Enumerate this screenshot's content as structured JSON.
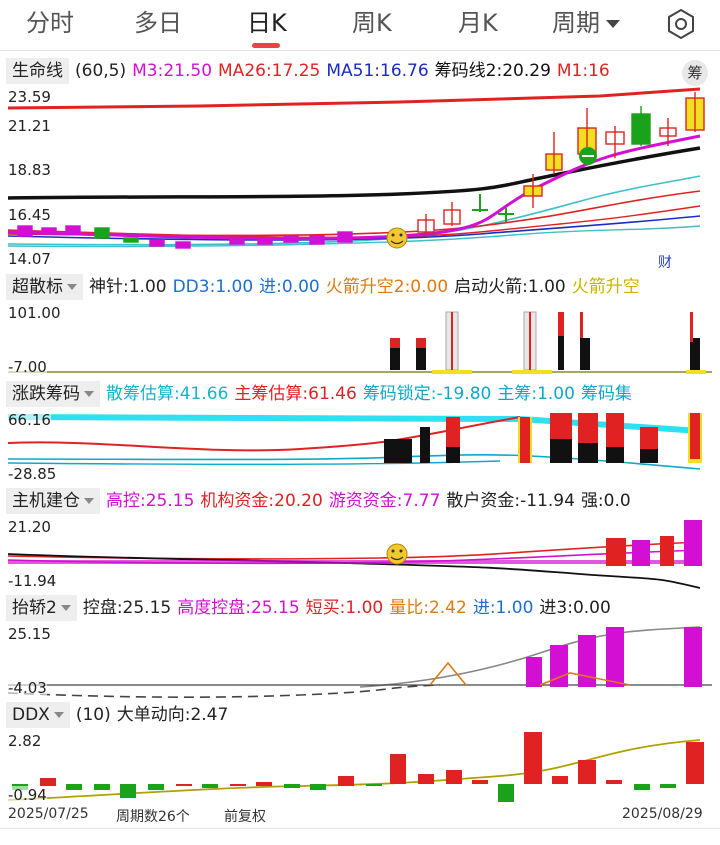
{
  "tabs": [
    {
      "label": "分时"
    },
    {
      "label": "多日"
    },
    {
      "label": "日K"
    },
    {
      "label": "周K"
    },
    {
      "label": "月K"
    },
    {
      "label": "周期"
    }
  ],
  "active_tab": "日K",
  "main": {
    "name": "生命线",
    "params": "(60,5)",
    "items": [
      {
        "text": "M3:21.50",
        "color": "#d40fd4"
      },
      {
        "text": "MA26:17.25",
        "color": "#e02222"
      },
      {
        "text": "MA51:16.76",
        "color": "#1b2bc4"
      },
      {
        "text": "筹码线2:20.29",
        "color": "#111111"
      },
      {
        "text": "M1:16",
        "color": "#e02222"
      }
    ],
    "badge": "筹",
    "badge2": "财",
    "y_labels": [
      "23.59",
      "21.21",
      "18.83",
      "16.45",
      "14.07"
    ]
  },
  "ind2": {
    "name": "超散标",
    "items": [
      {
        "text": "神针:1.00",
        "color": "#222222"
      },
      {
        "text": "DD3:1.00",
        "color": "#1e6fd0"
      },
      {
        "text": "进:0.00",
        "color": "#1e6fd0"
      },
      {
        "text": "火箭升空2:0.00",
        "color": "#e07a10"
      },
      {
        "text": "启动火箭:1.00",
        "color": "#222222"
      },
      {
        "text": "火箭升空",
        "color": "#c9b400"
      }
    ],
    "y_labels": [
      "101.00",
      "-7.00"
    ]
  },
  "ind3": {
    "name": "涨跌筹码",
    "items": [
      {
        "text": "散筹估算:41.66",
        "color": "#10b8c8"
      },
      {
        "text": "主筹估算:61.46",
        "color": "#e02222"
      },
      {
        "text": "筹码锁定:-19.80",
        "color": "#10a8c8"
      },
      {
        "text": "主筹:1.00",
        "color": "#10a8c8"
      },
      {
        "text": "筹码集",
        "color": "#10a8c8"
      }
    ],
    "y_labels": [
      "66.16",
      "-28.85"
    ]
  },
  "ind4": {
    "name": "主机建仓",
    "items": [
      {
        "text": "高控:25.15",
        "color": "#d40fd4"
      },
      {
        "text": "机构资金:20.20",
        "color": "#e02222"
      },
      {
        "text": "游资资金:7.77",
        "color": "#d40fd4"
      },
      {
        "text": "散户资金:-11.94",
        "color": "#222222"
      },
      {
        "text": "强:0.0",
        "color": "#222222"
      }
    ],
    "y_labels": [
      "21.20",
      "-11.94"
    ]
  },
  "ind5": {
    "name": "抬轿2",
    "items": [
      {
        "text": "控盘:25.15",
        "color": "#222222"
      },
      {
        "text": "高度控盘:25.15",
        "color": "#d40fd4"
      },
      {
        "text": "短买:1.00",
        "color": "#e02222"
      },
      {
        "text": "量比:2.42",
        "color": "#e07a10"
      },
      {
        "text": "进:1.00",
        "color": "#1e6fd0"
      },
      {
        "text": "进3:0.00",
        "color": "#222222"
      }
    ],
    "y_labels": [
      "25.15",
      "-4.03"
    ]
  },
  "ind6": {
    "name": "DDX",
    "params": "(10)",
    "items": [
      {
        "text": "大单动向:2.47",
        "color": "#222222"
      }
    ],
    "y_labels": [
      "2.82",
      "-0.94"
    ]
  },
  "footer": {
    "start_date": "2025/07/25",
    "period_count": "周期数26个",
    "adjust": "前复权",
    "end_date": "2025/08/29"
  },
  "colors": {
    "up": "#e02222",
    "down": "#1aa31a",
    "accent": "#e8453c"
  }
}
